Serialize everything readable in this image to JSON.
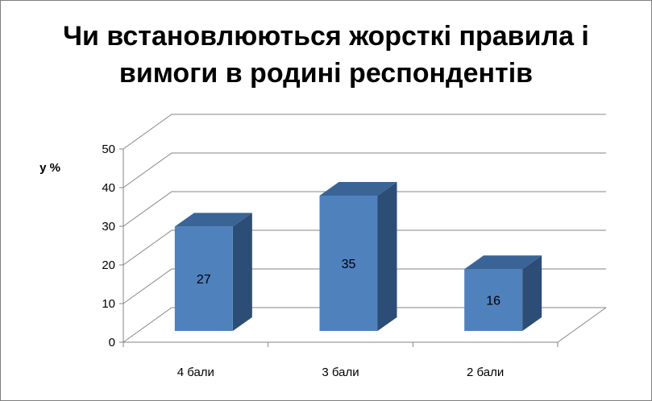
{
  "chart_data": {
    "type": "bar",
    "title_lines": [
      "Чи встановлюються жорсткі правила і",
      "вимоги в родині респондентів"
    ],
    "ylabel": "у %",
    "xlabel": "",
    "categories": [
      "4 бали",
      "3 бали",
      "2 бали"
    ],
    "values": [
      27,
      35,
      16
    ],
    "ylim": [
      0,
      50
    ],
    "yticks": [
      "0",
      "10",
      "20",
      "30",
      "40",
      "50"
    ],
    "grid": true,
    "legend": "none",
    "colors": {
      "front": "#4f81bd",
      "side": "#2c4d75",
      "top": "#3a6496",
      "grid": "#868686",
      "text": "#000000"
    }
  }
}
